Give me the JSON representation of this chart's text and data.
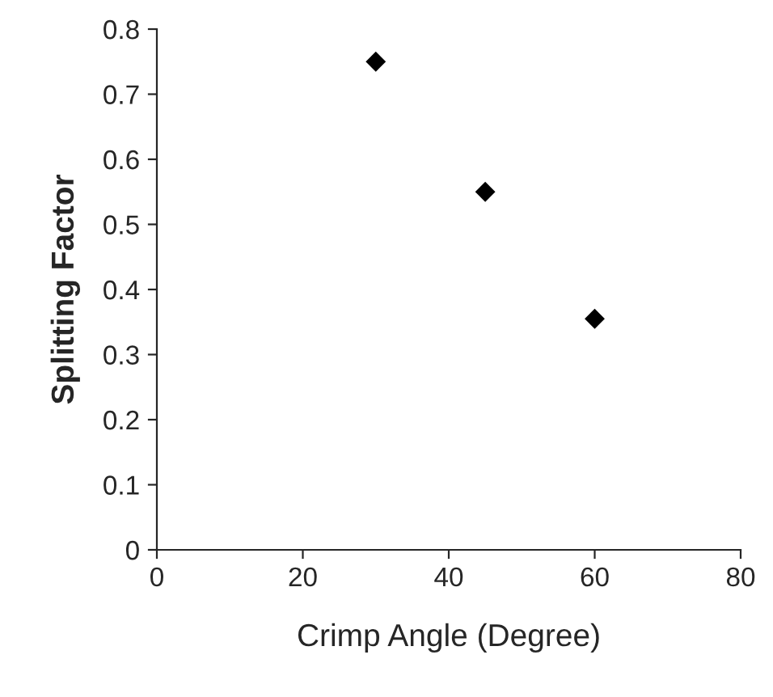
{
  "chart_data": {
    "type": "scatter",
    "xlabel": "Crimp Angle (Degree)",
    "ylabel": "Splitting Factor",
    "x": [
      30,
      45,
      60
    ],
    "values": [
      0.75,
      0.55,
      0.355
    ],
    "color": "#000000",
    "marker": "diamond",
    "xlim": [
      0,
      80
    ],
    "xticks": [
      0,
      20,
      40,
      60,
      80
    ],
    "ylim": [
      0,
      0.8
    ],
    "yticks": [
      0,
      0.1,
      0.2,
      0.3,
      0.4,
      0.5,
      0.6,
      0.7,
      0.8
    ],
    "grid": false
  }
}
